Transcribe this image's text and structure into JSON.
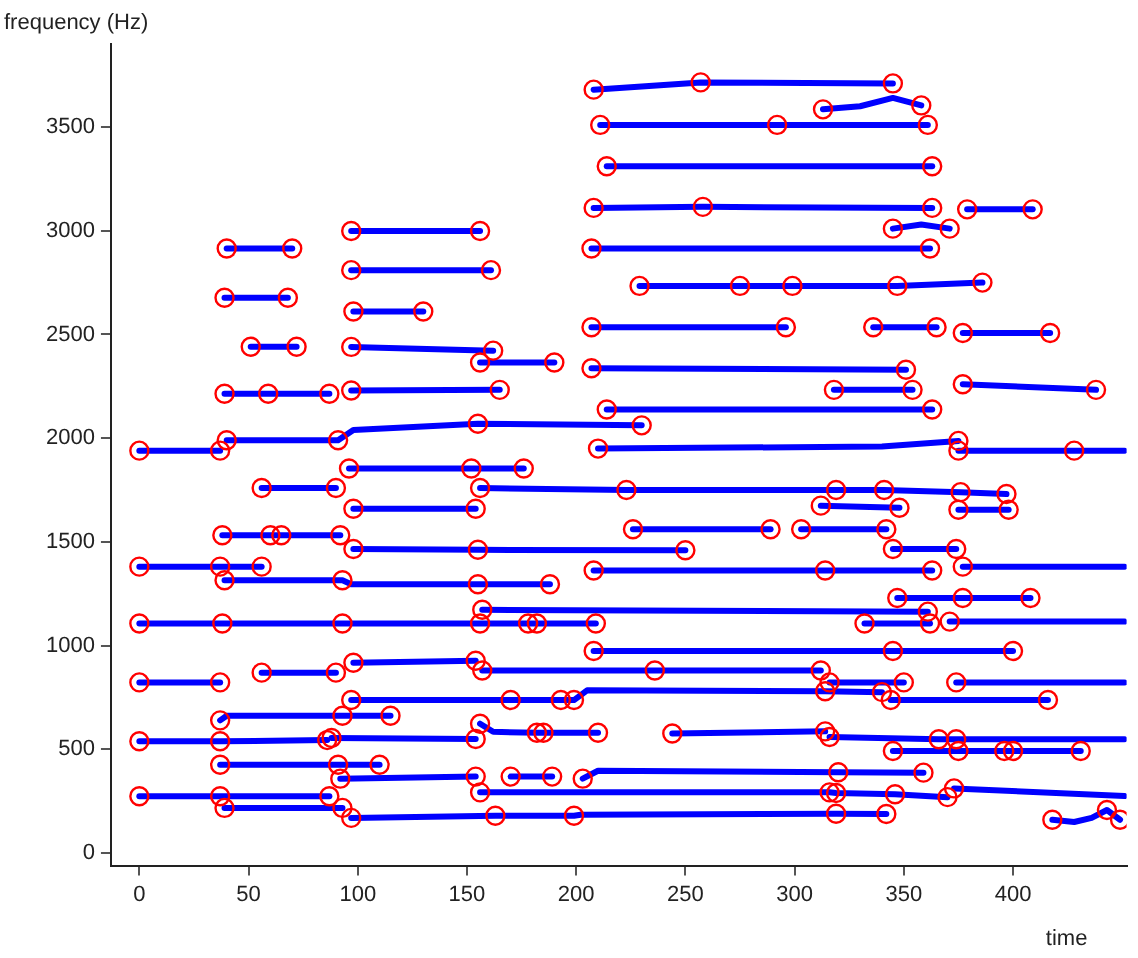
{
  "chart_data": {
    "type": "line",
    "xlabel": "time",
    "ylabel": "frequency (Hz)",
    "xlim": [
      -13,
      452
    ],
    "ylim": [
      -60,
      3900
    ],
    "xticks": [
      0,
      50,
      100,
      150,
      200,
      250,
      300,
      350,
      400
    ],
    "yticks": [
      0,
      500,
      1000,
      1500,
      2000,
      2500,
      3000,
      3500
    ],
    "series": [
      {
        "color": "#0000ff",
        "x": [
          0,
          37
        ],
        "values": [
          1940,
          1940
        ]
      },
      {
        "color": "#0000ff",
        "x": [
          40,
          91,
          98,
          155,
          230
        ],
        "values": [
          1990,
          1990,
          2040,
          2070,
          2062
        ]
      },
      {
        "color": "#0000ff",
        "x": [
          96,
          152,
          176
        ],
        "values": [
          1854,
          1854,
          1854
        ]
      },
      {
        "color": "#0000ff",
        "x": [
          56,
          90
        ],
        "values": [
          1760,
          1760
        ]
      },
      {
        "color": "#0000ff",
        "x": [
          98,
          154
        ],
        "values": [
          1660,
          1660
        ]
      },
      {
        "color": "#0000ff",
        "x": [
          38,
          92
        ],
        "values": [
          1532,
          1532
        ]
      },
      {
        "color": "#0000ff",
        "x": [
          98,
          155,
          250
        ],
        "values": [
          1466,
          1462,
          1460
        ]
      },
      {
        "color": "#0000ff",
        "x": [
          0,
          37,
          56
        ],
        "values": [
          1381,
          1381,
          1381
        ]
      },
      {
        "color": "#0000ff",
        "x": [
          39,
          93,
          97,
          155,
          188
        ],
        "values": [
          1315,
          1315,
          1296,
          1296,
          1296
        ]
      },
      {
        "color": "#0000ff",
        "x": [
          0,
          38,
          93,
          156,
          209
        ],
        "values": [
          1107,
          1107,
          1107,
          1107,
          1107
        ]
      },
      {
        "color": "#0000ff",
        "x": [
          98,
          154
        ],
        "values": [
          918,
          927
        ]
      },
      {
        "color": "#0000ff",
        "x": [
          56,
          90
        ],
        "values": [
          870,
          870
        ]
      },
      {
        "color": "#0000ff",
        "x": [
          0,
          37
        ],
        "values": [
          823,
          823
        ]
      },
      {
        "color": "#0000ff",
        "x": [
          97,
          170,
          199,
          205,
          314,
          340
        ],
        "values": [
          738,
          738,
          738,
          785,
          780,
          776
        ]
      },
      {
        "color": "#0000ff",
        "x": [
          37,
          40,
          93,
          115
        ],
        "values": [
          640,
          662,
          662,
          662
        ]
      },
      {
        "color": "#0000ff",
        "x": [
          0,
          37,
          86
        ],
        "values": [
          539,
          539,
          545
        ]
      },
      {
        "color": "#0000ff",
        "x": [
          88,
          154
        ],
        "values": [
          555,
          550
        ]
      },
      {
        "color": "#0000ff",
        "x": [
          156,
          162,
          182,
          210
        ],
        "values": [
          624,
          585,
          580,
          580
        ]
      },
      {
        "color": "#0000ff",
        "x": [
          37,
          91,
          110
        ],
        "values": [
          426,
          426,
          426
        ]
      },
      {
        "color": "#0000ff",
        "x": [
          92,
          154
        ],
        "values": [
          359,
          369
        ]
      },
      {
        "color": "#0000ff",
        "x": [
          170,
          189
        ],
        "values": [
          369,
          369
        ]
      },
      {
        "color": "#0000ff",
        "x": [
          203,
          210,
          320,
          359
        ],
        "values": [
          359,
          397,
          390,
          388
        ]
      },
      {
        "color": "#0000ff",
        "x": [
          0,
          37,
          87
        ],
        "values": [
          274,
          274,
          274
        ]
      },
      {
        "color": "#0000ff",
        "x": [
          39,
          93
        ],
        "values": [
          218,
          218
        ]
      },
      {
        "color": "#0000ff",
        "x": [
          97,
          163,
          199,
          202,
          319,
          342
        ],
        "values": [
          170,
          180,
          180,
          185,
          190,
          189
        ]
      },
      {
        "color": "#0000ff",
        "x": [
          156,
          316,
          319,
          346,
          370
        ],
        "values": [
          293,
          293,
          290,
          284,
          270
        ]
      },
      {
        "color": "#0000ff",
        "x": [
          373,
          451
        ],
        "values": [
          312,
          275
        ]
      },
      {
        "color": "#0000ff",
        "x": [
          418,
          428,
          436,
          443,
          449
        ],
        "values": [
          161,
          150,
          170,
          208,
          161
        ]
      },
      {
        "color": "#0000ff",
        "x": [
          244,
          314
        ],
        "values": [
          577,
          587
        ]
      },
      {
        "color": "#0000ff",
        "x": [
          316,
          366,
          374,
          451
        ],
        "values": [
          560,
          549,
          549,
          549
        ]
      },
      {
        "color": "#0000ff",
        "x": [
          345,
          431
        ],
        "values": [
          492,
          492
        ]
      },
      {
        "color": "#0000ff",
        "x": [
          157,
          236,
          312
        ],
        "values": [
          880,
          880,
          880
        ]
      },
      {
        "color": "#0000ff",
        "x": [
          316,
          350
        ],
        "values": [
          823,
          823
        ]
      },
      {
        "color": "#0000ff",
        "x": [
          374,
          451
        ],
        "values": [
          823,
          823
        ]
      },
      {
        "color": "#0000ff",
        "x": [
          344,
          416
        ],
        "values": [
          738,
          738
        ]
      },
      {
        "color": "#0000ff",
        "x": [
          208,
          345,
          400
        ],
        "values": [
          974,
          974,
          974
        ]
      },
      {
        "color": "#0000ff",
        "x": [
          157,
          361
        ],
        "values": [
          1173,
          1164
        ]
      },
      {
        "color": "#0000ff",
        "x": [
          332,
          362
        ],
        "values": [
          1107,
          1107
        ]
      },
      {
        "color": "#0000ff",
        "x": [
          371,
          451
        ],
        "values": [
          1116,
          1116
        ]
      },
      {
        "color": "#0000ff",
        "x": [
          347,
          408
        ],
        "values": [
          1230,
          1230
        ]
      },
      {
        "color": "#0000ff",
        "x": [
          208,
          314,
          363
        ],
        "values": [
          1362,
          1362,
          1362
        ]
      },
      {
        "color": "#0000ff",
        "x": [
          377,
          451
        ],
        "values": [
          1381,
          1381
        ]
      },
      {
        "color": "#0000ff",
        "x": [
          345,
          374
        ],
        "values": [
          1466,
          1466
        ]
      },
      {
        "color": "#0000ff",
        "x": [
          226,
          289
        ],
        "values": [
          1561,
          1561
        ]
      },
      {
        "color": "#0000ff",
        "x": [
          303,
          342
        ],
        "values": [
          1561,
          1561
        ]
      },
      {
        "color": "#0000ff",
        "x": [
          312,
          348
        ],
        "values": [
          1675,
          1665
        ]
      },
      {
        "color": "#0000ff",
        "x": [
          375,
          398
        ],
        "values": [
          1655,
          1655
        ]
      },
      {
        "color": "#0000ff",
        "x": [
          156,
          223,
          319,
          341,
          376,
          397
        ],
        "values": [
          1760,
          1750,
          1750,
          1750,
          1740,
          1731
        ]
      },
      {
        "color": "#0000ff",
        "x": [
          210,
          340,
          375
        ],
        "values": [
          1950,
          1960,
          1987
        ]
      },
      {
        "color": "#0000ff",
        "x": [
          375,
          428,
          451
        ],
        "values": [
          1940,
          1940,
          1940
        ]
      },
      {
        "color": "#0000ff",
        "x": [
          214,
          363
        ],
        "values": [
          2138,
          2138
        ]
      },
      {
        "color": "#0000ff",
        "x": [
          39,
          59,
          87
        ],
        "values": [
          2214,
          2214,
          2214
        ]
      },
      {
        "color": "#0000ff",
        "x": [
          97,
          165
        ],
        "values": [
          2230,
          2233
        ]
      },
      {
        "color": "#0000ff",
        "x": [
          318,
          354
        ],
        "values": [
          2233,
          2233
        ]
      },
      {
        "color": "#0000ff",
        "x": [
          377,
          438
        ],
        "values": [
          2260,
          2233
        ]
      },
      {
        "color": "#0000ff",
        "x": [
          207,
          351
        ],
        "values": [
          2337,
          2330
        ]
      },
      {
        "color": "#0000ff",
        "x": [
          156,
          190
        ],
        "values": [
          2365,
          2365
        ]
      },
      {
        "color": "#0000ff",
        "x": [
          97,
          162
        ],
        "values": [
          2440,
          2422
        ]
      },
      {
        "color": "#0000ff",
        "x": [
          51,
          72
        ],
        "values": [
          2441,
          2441
        ]
      },
      {
        "color": "#0000ff",
        "x": [
          98,
          130
        ],
        "values": [
          2611,
          2611
        ]
      },
      {
        "color": "#0000ff",
        "x": [
          39,
          68
        ],
        "values": [
          2677,
          2677
        ]
      },
      {
        "color": "#0000ff",
        "x": [
          97,
          161
        ],
        "values": [
          2810,
          2810
        ]
      },
      {
        "color": "#0000ff",
        "x": [
          40,
          70
        ],
        "values": [
          2914,
          2914
        ]
      },
      {
        "color": "#0000ff",
        "x": [
          97,
          156
        ],
        "values": [
          2999,
          2999
        ]
      },
      {
        "color": "#0000ff",
        "x": [
          207,
          296
        ],
        "values": [
          2535,
          2535
        ]
      },
      {
        "color": "#0000ff",
        "x": [
          336,
          365
        ],
        "values": [
          2535,
          2535
        ]
      },
      {
        "color": "#0000ff",
        "x": [
          377,
          417
        ],
        "values": [
          2507,
          2507
        ]
      },
      {
        "color": "#0000ff",
        "x": [
          229,
          347,
          386
        ],
        "values": [
          2734,
          2734,
          2750
        ]
      },
      {
        "color": "#0000ff",
        "x": [
          207,
          362
        ],
        "values": [
          2914,
          2914
        ]
      },
      {
        "color": "#0000ff",
        "x": [
          345,
          358,
          371
        ],
        "values": [
          3010,
          3030,
          3010
        ]
      },
      {
        "color": "#0000ff",
        "x": [
          208,
          258,
          363
        ],
        "values": [
          3110,
          3115,
          3110
        ]
      },
      {
        "color": "#0000ff",
        "x": [
          379,
          409
        ],
        "values": [
          3103,
          3103
        ]
      },
      {
        "color": "#0000ff",
        "x": [
          214,
          363
        ],
        "values": [
          3311,
          3311
        ]
      },
      {
        "color": "#0000ff",
        "x": [
          313,
          330,
          345,
          358
        ],
        "values": [
          3585,
          3600,
          3640,
          3604
        ]
      },
      {
        "color": "#0000ff",
        "x": [
          211,
          361
        ],
        "values": [
          3510,
          3510
        ]
      },
      {
        "color": "#0000ff",
        "x": [
          208,
          257,
          345
        ],
        "values": [
          3680,
          3715,
          3710
        ]
      },
      {
        "type": "scatter",
        "marker": "circle",
        "color": "#ff0000",
        "x": [
          0,
          37,
          40,
          91,
          155,
          230,
          96,
          152,
          176,
          56,
          90,
          98,
          154,
          38,
          60,
          65,
          92,
          98,
          155,
          250,
          0,
          37,
          56,
          39,
          93,
          155,
          188,
          0,
          38,
          93,
          156,
          178,
          182,
          209,
          98,
          154,
          56,
          90,
          0,
          37,
          97,
          170,
          193,
          199,
          314,
          340,
          37,
          93,
          115,
          0,
          37,
          86,
          88,
          154,
          156,
          182,
          185,
          210,
          37,
          91,
          110,
          92,
          154,
          170,
          189,
          203,
          320,
          359,
          0,
          37,
          87,
          39,
          93,
          97,
          163,
          199,
          319,
          342,
          156,
          316,
          319,
          346,
          370,
          373,
          418,
          443,
          449,
          244,
          314,
          316,
          366,
          374,
          345,
          375,
          396,
          400,
          431,
          157,
          236,
          312,
          316,
          350,
          374,
          344,
          416,
          208,
          345,
          400,
          157,
          361,
          332,
          362,
          371,
          347,
          377,
          408,
          208,
          314,
          363,
          377,
          345,
          374,
          226,
          289,
          303,
          342,
          312,
          348,
          375,
          398,
          156,
          223,
          319,
          341,
          376,
          397,
          210,
          375,
          375,
          428,
          214,
          363,
          39,
          59,
          87,
          97,
          165,
          318,
          354,
          377,
          438,
          207,
          351,
          156,
          190,
          97,
          162,
          51,
          72,
          98,
          130,
          39,
          68,
          97,
          161,
          40,
          70,
          97,
          156,
          207,
          296,
          336,
          365,
          377,
          417,
          229,
          275,
          299,
          347,
          386,
          207,
          362,
          345,
          371,
          208,
          258,
          363,
          379,
          409,
          214,
          363,
          313,
          358,
          211,
          292,
          361,
          208,
          257,
          345
        ],
        "values": [
          1940,
          1940,
          1990,
          1990,
          2070,
          2062,
          1854,
          1854,
          1854,
          1760,
          1760,
          1660,
          1660,
          1532,
          1532,
          1532,
          1532,
          1466,
          1462,
          1460,
          1381,
          1381,
          1381,
          1315,
          1315,
          1296,
          1296,
          1107,
          1107,
          1107,
          1107,
          1107,
          1107,
          1107,
          918,
          927,
          870,
          870,
          823,
          823,
          738,
          738,
          738,
          738,
          780,
          776,
          640,
          662,
          662,
          539,
          539,
          545,
          555,
          550,
          624,
          580,
          580,
          580,
          426,
          426,
          426,
          359,
          369,
          369,
          369,
          359,
          390,
          388,
          274,
          274,
          274,
          218,
          218,
          170,
          180,
          180,
          190,
          189,
          293,
          293,
          290,
          284,
          270,
          312,
          161,
          208,
          161,
          577,
          587,
          560,
          549,
          549,
          492,
          492,
          492,
          492,
          492,
          880,
          880,
          880,
          823,
          823,
          823,
          738,
          738,
          974,
          974,
          974,
          1173,
          1164,
          1107,
          1107,
          1116,
          1230,
          1230,
          1230,
          1362,
          1362,
          1362,
          1381,
          1466,
          1466,
          1561,
          1561,
          1561,
          1561,
          1675,
          1665,
          1655,
          1655,
          1760,
          1750,
          1750,
          1750,
          1740,
          1731,
          1950,
          1987,
          1940,
          1940,
          2138,
          2138,
          2214,
          2214,
          2214,
          2230,
          2233,
          2233,
          2233,
          2260,
          2233,
          2337,
          2330,
          2365,
          2365,
          2440,
          2422,
          2441,
          2441,
          2611,
          2611,
          2677,
          2677,
          2810,
          2810,
          2914,
          2914,
          2999,
          2999,
          2535,
          2535,
          2535,
          2535,
          2507,
          2507,
          2734,
          2734,
          2734,
          2734,
          2750,
          2914,
          2914,
          3010,
          3010,
          3110,
          3115,
          3110,
          3103,
          3103,
          3311,
          3311,
          3585,
          3604,
          3510,
          3510,
          3510,
          3680,
          3715,
          3710
        ]
      }
    ]
  }
}
